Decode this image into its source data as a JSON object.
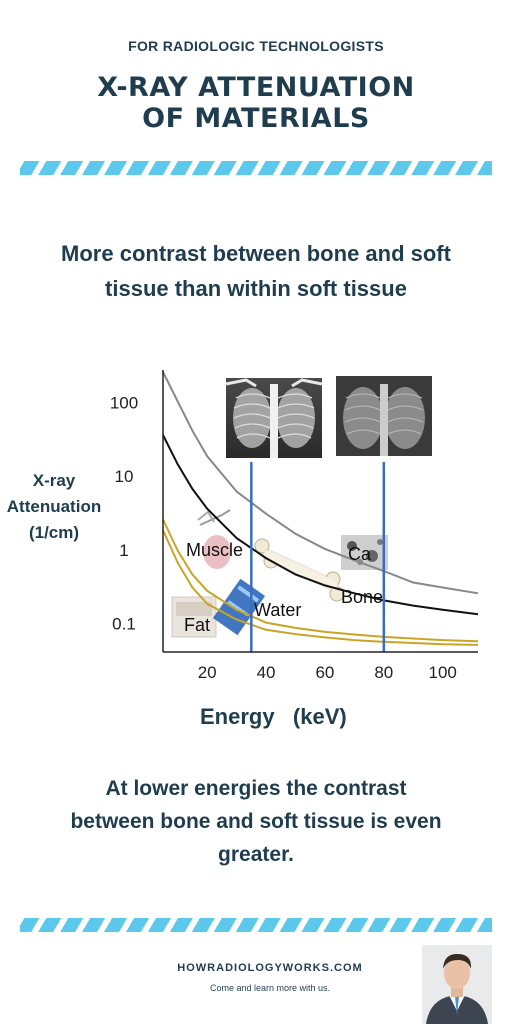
{
  "header": {
    "eyebrow": "FOR RADIOLOGIC TECHNOLOGISTS",
    "title_line1": "X-RAY ATTENUATION",
    "title_line2": "OF MATERIALS"
  },
  "intro_text_line1": "More contrast between bone and soft",
  "intro_text_line2": "tissue than within soft tissue",
  "conclusion_line1": "At lower energies the contrast",
  "conclusion_line2": "between bone and soft tissue is even",
  "conclusion_line3": "greater.",
  "footer": {
    "site": "HOWRADIOLOGYWORKS.COM",
    "tagline": "Come and learn more with us."
  },
  "colors": {
    "text": "#1f3d4f",
    "accent_stripe": "#5bc8ec",
    "marker_lines": "#3a6dbf",
    "curve_dark": "#111111",
    "curve_gray": "#888888",
    "curve_gold": "#c9a527"
  },
  "chart_data": {
    "type": "line",
    "xlabel": "Energy   (keV)",
    "ylabel_lines": [
      "X-ray",
      "Attenuation",
      "(1/cm)"
    ],
    "x_ticks": [
      20,
      40,
      60,
      80,
      100
    ],
    "y_ticks": [
      {
        "value": 100,
        "label": "100"
      },
      {
        "value": 10,
        "label": "10"
      },
      {
        "value": 1,
        "label": "1"
      },
      {
        "value": 0.1,
        "label": "0.1"
      }
    ],
    "y_scale": "log",
    "xlim": [
      5,
      112
    ],
    "ylim": [
      0.04,
      250
    ],
    "marker_energies": [
      35,
      80
    ],
    "series": [
      {
        "label": "",
        "color": "#888888",
        "points": [
          [
            5,
            250
          ],
          [
            10,
            100
          ],
          [
            15,
            40
          ],
          [
            20,
            18
          ],
          [
            30,
            6
          ],
          [
            40,
            3
          ],
          [
            50,
            1.6
          ],
          [
            60,
            1
          ],
          [
            70,
            0.7
          ],
          [
            80,
            0.5
          ],
          [
            90,
            0.35
          ],
          [
            100,
            0.3
          ],
          [
            112,
            0.25
          ]
        ]
      },
      {
        "label": "",
        "color": "#111111",
        "points": [
          [
            5,
            35
          ],
          [
            10,
            14
          ],
          [
            15,
            6.5
          ],
          [
            20,
            3.5
          ],
          [
            30,
            1.4
          ],
          [
            40,
            0.75
          ],
          [
            50,
            0.45
          ],
          [
            60,
            0.32
          ],
          [
            70,
            0.25
          ],
          [
            80,
            0.2
          ],
          [
            90,
            0.17
          ],
          [
            100,
            0.15
          ],
          [
            112,
            0.13
          ]
        ]
      },
      {
        "label": "",
        "color": "#c9a527",
        "points": [
          [
            5,
            2.5
          ],
          [
            10,
            0.95
          ],
          [
            15,
            0.45
          ],
          [
            20,
            0.27
          ],
          [
            30,
            0.15
          ],
          [
            40,
            0.1
          ],
          [
            50,
            0.085
          ],
          [
            60,
            0.075
          ],
          [
            70,
            0.069
          ],
          [
            80,
            0.064
          ],
          [
            90,
            0.061
          ],
          [
            100,
            0.058
          ],
          [
            112,
            0.056
          ]
        ]
      },
      {
        "label": "",
        "color": "#c9a527",
        "points": [
          [
            5,
            1.8
          ],
          [
            10,
            0.65
          ],
          [
            15,
            0.3
          ],
          [
            20,
            0.18
          ],
          [
            30,
            0.11
          ],
          [
            40,
            0.08
          ],
          [
            50,
            0.07
          ],
          [
            60,
            0.063
          ],
          [
            70,
            0.058
          ],
          [
            80,
            0.055
          ],
          [
            90,
            0.053
          ],
          [
            100,
            0.051
          ],
          [
            112,
            0.05
          ]
        ]
      }
    ],
    "annotations": [
      "Muscle",
      "Water",
      "Fat",
      "Bone",
      "Ca"
    ],
    "inset_images": [
      "chest-xray-low-energy",
      "chest-xray-high-energy"
    ]
  }
}
